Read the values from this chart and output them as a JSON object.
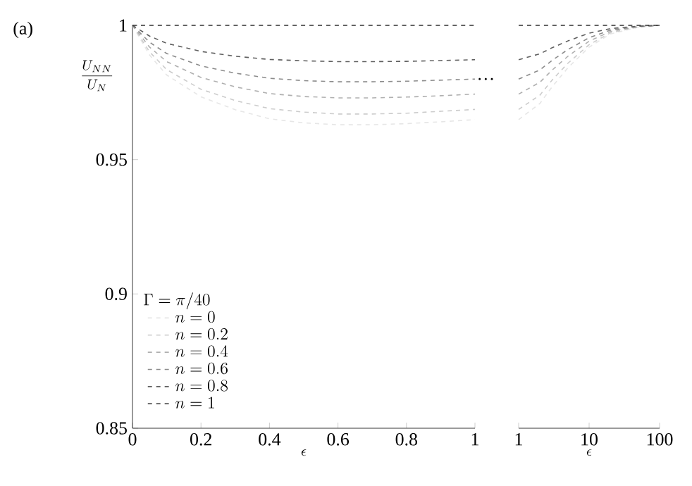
{
  "chart_data": [
    {
      "type": "line",
      "xlabel": "\\epsilon",
      "ylabel": "\\frac{U_{NN}}{U_N}",
      "legend_title": "\\Gamma = \\pi/40",
      "legend": "bottom left",
      "line_style": "dashed",
      "marker": "none",
      "annotations": [
        "(a)",
        {
          "text": "…",
          "x": 1,
          "y": 0.98
        }
      ],
      "xlim": [
        0,
        1
      ],
      "ylim": [
        0.85,
        1.0
      ],
      "xticks": [
        0,
        0.2,
        0.4,
        0.6,
        0.8,
        1
      ],
      "yticks": [
        0.85,
        0.9,
        0.95,
        1
      ],
      "x": [
        0,
        0.05,
        0.1,
        0.2,
        0.3,
        0.4,
        0.5,
        0.6,
        0.7,
        0.8,
        0.9,
        1
      ],
      "series": [
        {
          "name": "n = 0",
          "color": "#e6e6e6",
          "values": [
            1,
            0.9889,
            0.9815,
            0.9734,
            0.9686,
            0.9652,
            0.9637,
            0.963,
            0.963,
            0.9634,
            0.9641,
            0.9649
          ]
        },
        {
          "name": "n = 0.2",
          "color": "#cccccc",
          "values": [
            1,
            0.9901,
            0.9835,
            0.9762,
            0.972,
            0.969,
            0.9677,
            0.967,
            0.967,
            0.9673,
            0.968,
            0.9687
          ]
        },
        {
          "name": "n = 0.4",
          "color": "#b0b0b0",
          "values": [
            1,
            0.9919,
            0.9865,
            0.9806,
            0.9771,
            0.9746,
            0.9735,
            0.973,
            0.973,
            0.9733,
            0.9738,
            0.9744
          ]
        },
        {
          "name": "n = 0.6",
          "color": "#8c8c8c",
          "values": [
            1,
            0.9937,
            0.9895,
            0.9849,
            0.9822,
            0.9803,
            0.9794,
            0.979,
            0.979,
            0.9792,
            0.9796,
            0.98
          ]
        },
        {
          "name": "n = 0.8",
          "color": "#606060",
          "values": [
            1,
            0.996,
            0.9933,
            0.9903,
            0.9885,
            0.9873,
            0.9868,
            0.9865,
            0.9865,
            0.9866,
            0.9869,
            0.9872
          ]
        },
        {
          "name": "n = 1",
          "color": "#303030",
          "values": [
            1,
            1,
            1,
            1,
            1,
            1,
            1,
            1,
            1,
            1,
            1,
            1
          ]
        }
      ]
    },
    {
      "type": "line",
      "xlabel": "\\epsilon",
      "log": "x",
      "tick_labels": "x",
      "line_style": "dashed",
      "marker": "none",
      "xlim": [
        1,
        100
      ],
      "ylim": [
        0.85,
        1.0
      ],
      "xticks": [
        1,
        10,
        100
      ],
      "x": [
        1,
        2,
        3,
        5,
        10,
        20,
        50,
        100
      ],
      "series": [
        {
          "color": "#e6e6e6",
          "values": [
            0.9649,
            0.9709,
            0.9772,
            0.9842,
            0.9919,
            0.9968,
            0.9993,
            1
          ]
        },
        {
          "color": "#cccccc",
          "values": [
            0.9687,
            0.974,
            0.9797,
            0.9859,
            0.9928,
            0.9972,
            0.9994,
            1
          ]
        },
        {
          "color": "#b0b0b0",
          "values": [
            0.9744,
            0.9788,
            0.9834,
            0.9885,
            0.9941,
            0.9977,
            0.9995,
            1
          ]
        },
        {
          "color": "#8c8c8c",
          "values": [
            0.98,
            0.9834,
            0.987,
            0.991,
            0.9954,
            0.9982,
            0.9996,
            1
          ]
        },
        {
          "color": "#606060",
          "values": [
            0.9872,
            0.9894,
            0.9917,
            0.9942,
            0.9971,
            0.9988,
            0.9997,
            1
          ]
        },
        {
          "color": "#303030",
          "values": [
            1,
            1,
            1,
            1,
            1,
            1,
            1,
            1
          ]
        }
      ]
    }
  ]
}
